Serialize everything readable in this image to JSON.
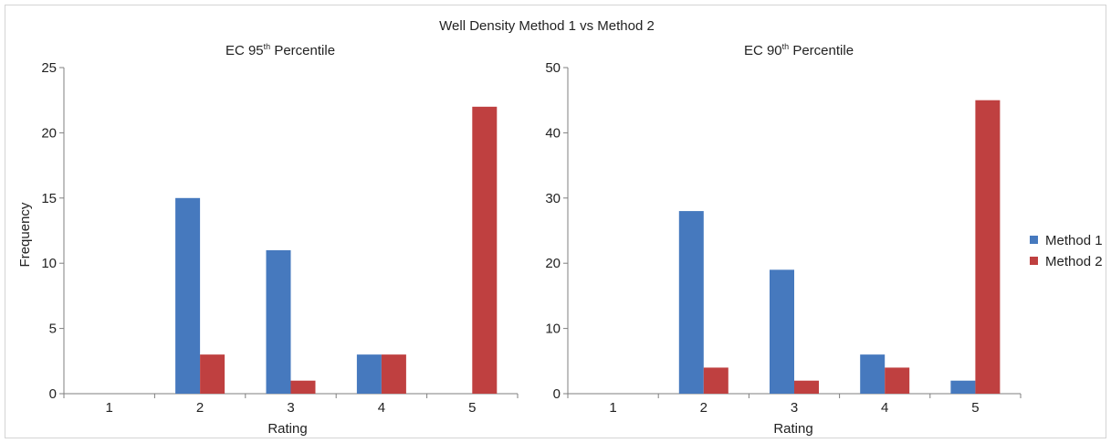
{
  "chart_data": {
    "title": "Well Density Method 1 vs Method 2",
    "legend": {
      "placement": "right",
      "items": [
        {
          "name": "Method 1",
          "color": "#4679be"
        },
        {
          "name": "Method 2",
          "color": "#bf4040"
        }
      ]
    },
    "ylabel": "Frequency",
    "charts": [
      {
        "type": "bar",
        "title_prefix": "EC 95",
        "title_sup": "th",
        "title_suffix": " Percentile",
        "xlabel": "Rating",
        "categories": [
          "1",
          "2",
          "3",
          "4",
          "5"
        ],
        "ylim": [
          0,
          25
        ],
        "yticks": [
          0,
          5,
          10,
          15,
          20,
          25
        ],
        "series": [
          {
            "name": "Method 1",
            "color": "#4679be",
            "values": [
              0,
              15,
              11,
              3,
              0
            ]
          },
          {
            "name": "Method 2",
            "color": "#bf4040",
            "values": [
              0,
              3,
              1,
              3,
              22
            ]
          }
        ]
      },
      {
        "type": "bar",
        "title_prefix": "EC 90",
        "title_sup": "th",
        "title_suffix": " Percentile",
        "xlabel": "Rating",
        "categories": [
          "1",
          "2",
          "3",
          "4",
          "5"
        ],
        "ylim": [
          0,
          50
        ],
        "yticks": [
          0,
          10,
          20,
          30,
          40,
          50
        ],
        "series": [
          {
            "name": "Method 1",
            "color": "#4679be",
            "values": [
              0,
              28,
              19,
              6,
              2
            ]
          },
          {
            "name": "Method 2",
            "color": "#bf4040",
            "values": [
              0,
              4,
              2,
              4,
              45
            ]
          }
        ]
      }
    ]
  }
}
